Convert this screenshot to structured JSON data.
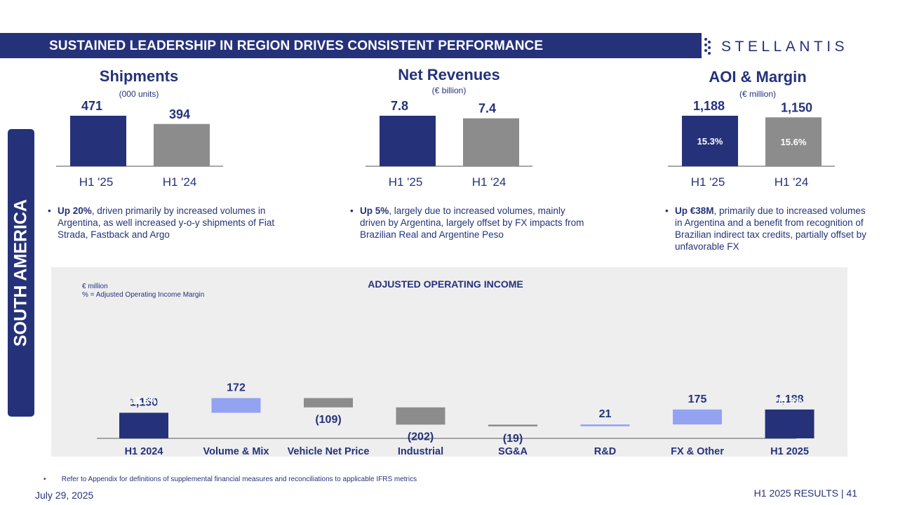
{
  "header": {
    "title": "SUSTAINED LEADERSHIP IN REGION DRIVES CONSISTENT PERFORMANCE",
    "logo_text": "STELLANTIS"
  },
  "side_label": "SOUTH AMERICA",
  "colors": {
    "navy": "#25327a",
    "gray": "#8c8c8c",
    "light_blue": "#93a3f2",
    "panel": "#eeeeef"
  },
  "metrics": [
    {
      "title": "Shipments",
      "unit": "(000 units)",
      "bullet_bold": "Up 20%",
      "bullet_rest": ", driven primarily by increased volumes in Argentina, as well increased y-o-y shipments of Fiat Strada, Fastback and Argo"
    },
    {
      "title": "Net Revenues",
      "unit": "(€ billion)",
      "bullet_bold": "Up 5%",
      "bullet_rest": ", largely due to increased volumes, mainly driven by Argentina, largely offset by FX impacts from Brazilian Real and Argentine Peso"
    },
    {
      "title": "AOI & Margin",
      "unit": "(€ million)",
      "bullet_bold": "Up €38M",
      "bullet_rest": ", primarily due to increased volumes in Argentina and a benefit from recognition of Brazilian indirect tax credits, partially offset by unfavorable FX"
    }
  ],
  "chart_data": [
    {
      "type": "bar",
      "title": "Shipments",
      "subtitle": "(000 units)",
      "categories": [
        "H1 '25",
        "H1 '24"
      ],
      "values": [
        471,
        394
      ],
      "value_labels": [
        "471",
        "394"
      ],
      "colors": [
        "#25327a",
        "#8c8c8c"
      ]
    },
    {
      "type": "bar",
      "title": "Net Revenues",
      "subtitle": "(€ billion)",
      "categories": [
        "H1 '25",
        "H1 '24"
      ],
      "values": [
        7.8,
        7.4
      ],
      "value_labels": [
        "7.8",
        "7.4"
      ],
      "colors": [
        "#25327a",
        "#8c8c8c"
      ]
    },
    {
      "type": "bar",
      "title": "AOI & Margin",
      "subtitle": "(€ million)",
      "categories": [
        "H1 '25",
        "H1 '24"
      ],
      "values": [
        1188,
        1150
      ],
      "value_labels": [
        "1,188",
        "1,150"
      ],
      "margins": [
        "15.3%",
        "15.6%"
      ],
      "colors": [
        "#25327a",
        "#8c8c8c"
      ]
    },
    {
      "type": "waterfall",
      "title": "ADJUSTED OPERATING INCOME",
      "notes": [
        "€ million",
        "% = Adjusted Operating Income Margin"
      ],
      "ylim": [
        0,
        1400
      ],
      "steps": [
        {
          "label": "H1 2024",
          "value": 1150,
          "kind": "total",
          "display": "1,150",
          "margin": "15.6%"
        },
        {
          "label": "Volume & Mix",
          "value": 172,
          "kind": "up",
          "display": "172"
        },
        {
          "label": "Vehicle Net Price",
          "value": -109,
          "kind": "down",
          "display": "(109)"
        },
        {
          "label": "Industrial",
          "value": -202,
          "kind": "down",
          "display": "(202)"
        },
        {
          "label": "SG&A",
          "value": -19,
          "kind": "down",
          "display": "(19)"
        },
        {
          "label": "R&D",
          "value": 21,
          "kind": "up",
          "display": "21"
        },
        {
          "label": "FX & Other",
          "value": 175,
          "kind": "up",
          "display": "175"
        },
        {
          "label": "H1 2025",
          "value": 1188,
          "kind": "total",
          "display": "1,188",
          "margin": "15.3%"
        }
      ]
    }
  ],
  "footnote": "Refer to Appendix for definitions of supplemental financial measures and reconciliations to applicable IFRS metrics",
  "footer": {
    "date": "July 29, 2025",
    "right": "H1 2025 RESULTS  |  41"
  }
}
